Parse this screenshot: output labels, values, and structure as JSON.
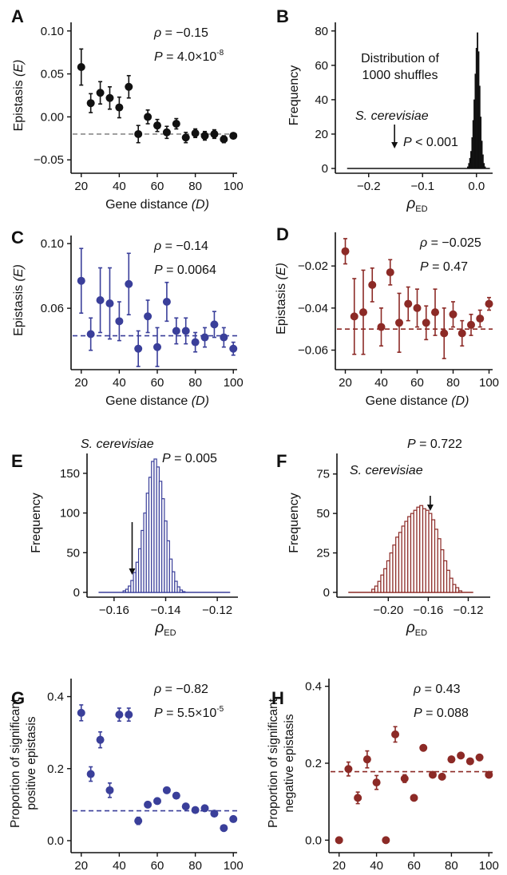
{
  "colors": {
    "black": "#111111",
    "blue": "#3a3f9a",
    "red": "#8c2a26",
    "grey": "#8a8a8a"
  },
  "panels": [
    {
      "letter": "A",
      "type": "scatter",
      "color": "black",
      "xlabel": "Gene distance",
      "xlabel_var": "(D)",
      "ylabel": "Epistasis",
      "ylabel_var": "(E)",
      "xlim": [
        18,
        102
      ],
      "ylim": [
        -0.06,
        0.11
      ],
      "xticks": [
        20,
        40,
        60,
        80,
        100
      ],
      "yticks": [
        -0.05,
        0.0,
        0.05,
        0.1
      ],
      "ytick_labels": [
        "-0.05",
        "0.00",
        "0.05",
        "0.10"
      ],
      "stat_rho": "ρ = −0.15",
      "stat_p": "P = 4.0×10",
      "stat_p_exp": "-8",
      "ref_line": -0.02,
      "points": [
        {
          "x": 20,
          "y": 0.058,
          "err": 0.021
        },
        {
          "x": 25,
          "y": 0.016,
          "err": 0.011
        },
        {
          "x": 30,
          "y": 0.028,
          "err": 0.013
        },
        {
          "x": 35,
          "y": 0.022,
          "err": 0.013
        },
        {
          "x": 40,
          "y": 0.011,
          "err": 0.012
        },
        {
          "x": 45,
          "y": 0.035,
          "err": 0.013
        },
        {
          "x": 50,
          "y": -0.02,
          "err": 0.01
        },
        {
          "x": 55,
          "y": 0.0,
          "err": 0.008
        },
        {
          "x": 60,
          "y": -0.01,
          "err": 0.007
        },
        {
          "x": 65,
          "y": -0.018,
          "err": 0.007
        },
        {
          "x": 70,
          "y": -0.008,
          "err": 0.006
        },
        {
          "x": 75,
          "y": -0.024,
          "err": 0.006
        },
        {
          "x": 80,
          "y": -0.019,
          "err": 0.005
        },
        {
          "x": 85,
          "y": -0.022,
          "err": 0.005
        },
        {
          "x": 90,
          "y": -0.02,
          "err": 0.005
        },
        {
          "x": 95,
          "y": -0.026,
          "err": 0.004
        },
        {
          "x": 100,
          "y": -0.022,
          "err": 0.003
        }
      ]
    },
    {
      "letter": "B",
      "type": "histogram",
      "color": "black",
      "xlabel": "ρ",
      "xlabel_sub": "ED",
      "ylabel": "Frequency",
      "xlim": [
        -0.25,
        0.03
      ],
      "ylim": [
        0,
        85
      ],
      "xticks": [
        -0.2,
        -0.1,
        0.0
      ],
      "xtick_labels": [
        "-0.2",
        "-0.1",
        "0.0"
      ],
      "yticks": [
        0,
        20,
        40,
        60,
        80
      ],
      "annotation_lines": [
        "Distribution of",
        "1000 shuffles"
      ],
      "species": "S. cerevisiae",
      "pvalue": "P < 0.001",
      "arrow_x": -0.152,
      "baseline": [
        -0.24,
        0.025
      ],
      "bin_width": 0.002,
      "bins": [
        {
          "x": -0.016,
          "h": 1
        },
        {
          "x": -0.014,
          "h": 3
        },
        {
          "x": -0.012,
          "h": 6
        },
        {
          "x": -0.01,
          "h": 10
        },
        {
          "x": -0.008,
          "h": 18
        },
        {
          "x": -0.006,
          "h": 28
        },
        {
          "x": -0.004,
          "h": 40
        },
        {
          "x": -0.002,
          "h": 55
        },
        {
          "x": 0.0,
          "h": 70
        },
        {
          "x": 0.002,
          "h": 79
        },
        {
          "x": 0.004,
          "h": 68
        },
        {
          "x": 0.006,
          "h": 48
        },
        {
          "x": 0.008,
          "h": 30
        },
        {
          "x": 0.01,
          "h": 16
        },
        {
          "x": 0.012,
          "h": 8
        },
        {
          "x": 0.014,
          "h": 3
        },
        {
          "x": 0.016,
          "h": 1
        }
      ]
    },
    {
      "letter": "C",
      "type": "scatter",
      "color": "blue",
      "xlabel": "Gene distance",
      "xlabel_var": "(D)",
      "ylabel": "Epistasis",
      "ylabel_var": "(E)",
      "xlim": [
        18,
        102
      ],
      "ylim": [
        0.025,
        0.105
      ],
      "xticks": [
        20,
        40,
        60,
        80,
        100
      ],
      "yticks": [
        0.06,
        0.1
      ],
      "ytick_labels": [
        "0.06",
        "0.10"
      ],
      "stat_rho": "ρ = −0.14",
      "stat_p": "P = 0.0064",
      "stat_p_exp": "",
      "ref_line": 0.043,
      "points": [
        {
          "x": 20,
          "y": 0.077,
          "err": 0.02
        },
        {
          "x": 25,
          "y": 0.044,
          "err": 0.01
        },
        {
          "x": 30,
          "y": 0.065,
          "err": 0.02
        },
        {
          "x": 35,
          "y": 0.063,
          "err": 0.022
        },
        {
          "x": 40,
          "y": 0.052,
          "err": 0.012
        },
        {
          "x": 45,
          "y": 0.075,
          "err": 0.019
        },
        {
          "x": 50,
          "y": 0.035,
          "err": 0.011
        },
        {
          "x": 55,
          "y": 0.055,
          "err": 0.01
        },
        {
          "x": 60,
          "y": 0.036,
          "err": 0.012
        },
        {
          "x": 65,
          "y": 0.064,
          "err": 0.012
        },
        {
          "x": 70,
          "y": 0.046,
          "err": 0.008
        },
        {
          "x": 75,
          "y": 0.046,
          "err": 0.008
        },
        {
          "x": 80,
          "y": 0.039,
          "err": 0.006
        },
        {
          "x": 85,
          "y": 0.042,
          "err": 0.006
        },
        {
          "x": 90,
          "y": 0.05,
          "err": 0.008
        },
        {
          "x": 95,
          "y": 0.042,
          "err": 0.006
        },
        {
          "x": 100,
          "y": 0.035,
          "err": 0.004
        }
      ]
    },
    {
      "letter": "D",
      "type": "scatter",
      "color": "red",
      "xlabel": "Gene distance",
      "xlabel_var": "(D)",
      "ylabel": "Epistasis",
      "ylabel_var": "(E)",
      "xlim": [
        18,
        102
      ],
      "ylim": [
        -0.067,
        -0.004
      ],
      "xticks": [
        20,
        40,
        60,
        80,
        100
      ],
      "yticks": [
        -0.06,
        -0.04,
        -0.02
      ],
      "ytick_labels": [
        "-0.06",
        "-0.04",
        "-0.02"
      ],
      "stat_rho": "ρ = −0.025",
      "stat_p": "P = 0.47",
      "stat_p_exp": "",
      "ref_line": -0.05,
      "points": [
        {
          "x": 20,
          "y": -0.013,
          "err": 0.006
        },
        {
          "x": 25,
          "y": -0.044,
          "err": 0.018
        },
        {
          "x": 30,
          "y": -0.042,
          "err": 0.02
        },
        {
          "x": 35,
          "y": -0.029,
          "err": 0.008
        },
        {
          "x": 40,
          "y": -0.049,
          "err": 0.009
        },
        {
          "x": 45,
          "y": -0.023,
          "err": 0.006
        },
        {
          "x": 50,
          "y": -0.047,
          "err": 0.014
        },
        {
          "x": 55,
          "y": -0.038,
          "err": 0.008
        },
        {
          "x": 60,
          "y": -0.04,
          "err": 0.009
        },
        {
          "x": 65,
          "y": -0.047,
          "err": 0.008
        },
        {
          "x": 70,
          "y": -0.042,
          "err": 0.011
        },
        {
          "x": 75,
          "y": -0.052,
          "err": 0.012
        },
        {
          "x": 80,
          "y": -0.043,
          "err": 0.006
        },
        {
          "x": 85,
          "y": -0.052,
          "err": 0.006
        },
        {
          "x": 90,
          "y": -0.048,
          "err": 0.005
        },
        {
          "x": 95,
          "y": -0.045,
          "err": 0.004
        },
        {
          "x": 100,
          "y": -0.038,
          "err": 0.003
        }
      ]
    },
    {
      "letter": "E",
      "type": "histogram",
      "color": "blue",
      "xlabel": "ρ",
      "xlabel_sub": "ED",
      "ylabel": "Frequency",
      "xlim": [
        -0.168,
        -0.112
      ],
      "ylim": [
        0,
        175
      ],
      "xticks": [
        -0.16,
        -0.14,
        -0.12
      ],
      "xtick_labels": [
        "-0.16",
        "-0.14",
        "-0.12"
      ],
      "yticks": [
        0,
        50,
        100,
        150
      ],
      "annotation_lines": [],
      "species": "S. cerevisiae",
      "pvalue": "P = 0.005",
      "arrow_x": -0.153,
      "baseline": [
        -0.166,
        -0.115
      ],
      "bin_width": 0.001,
      "bins": [
        {
          "x": -0.156,
          "h": 2
        },
        {
          "x": -0.155,
          "h": 4
        },
        {
          "x": -0.154,
          "h": 8
        },
        {
          "x": -0.153,
          "h": 15
        },
        {
          "x": -0.152,
          "h": 25
        },
        {
          "x": -0.151,
          "h": 38
        },
        {
          "x": -0.15,
          "h": 55
        },
        {
          "x": -0.149,
          "h": 78
        },
        {
          "x": -0.148,
          "h": 100
        },
        {
          "x": -0.147,
          "h": 125
        },
        {
          "x": -0.146,
          "h": 145
        },
        {
          "x": -0.145,
          "h": 165
        },
        {
          "x": -0.144,
          "h": 168
        },
        {
          "x": -0.143,
          "h": 158
        },
        {
          "x": -0.142,
          "h": 140
        },
        {
          "x": -0.141,
          "h": 118
        },
        {
          "x": -0.14,
          "h": 90
        },
        {
          "x": -0.139,
          "h": 65
        },
        {
          "x": -0.138,
          "h": 42
        },
        {
          "x": -0.137,
          "h": 26
        },
        {
          "x": -0.136,
          "h": 14
        },
        {
          "x": -0.135,
          "h": 7
        },
        {
          "x": -0.134,
          "h": 3
        },
        {
          "x": -0.133,
          "h": 1
        }
      ]
    },
    {
      "letter": "F",
      "type": "histogram",
      "color": "red",
      "xlabel": "ρ",
      "xlabel_sub": "ED",
      "ylabel": "Frequency",
      "xlim": [
        -0.245,
        -0.098
      ],
      "ylim": [
        0,
        88
      ],
      "xticks": [
        -0.2,
        -0.16,
        -0.12
      ],
      "xtick_labels": [
        "-0.20",
        "-0.16",
        "-0.12"
      ],
      "yticks": [
        0,
        25,
        50,
        75
      ],
      "annotation_lines": [],
      "species": "S. cerevisiae",
      "pvalue": "P = 0.722",
      "arrow_x": -0.158,
      "baseline": [
        -0.24,
        -0.115
      ],
      "bin_width": 0.003,
      "bins": [
        {
          "x": -0.215,
          "h": 2
        },
        {
          "x": -0.212,
          "h": 4
        },
        {
          "x": -0.209,
          "h": 7
        },
        {
          "x": -0.206,
          "h": 11
        },
        {
          "x": -0.203,
          "h": 15
        },
        {
          "x": -0.2,
          "h": 20
        },
        {
          "x": -0.197,
          "h": 25
        },
        {
          "x": -0.194,
          "h": 30
        },
        {
          "x": -0.191,
          "h": 35
        },
        {
          "x": -0.188,
          "h": 38
        },
        {
          "x": -0.185,
          "h": 42
        },
        {
          "x": -0.182,
          "h": 45
        },
        {
          "x": -0.179,
          "h": 48
        },
        {
          "x": -0.176,
          "h": 50
        },
        {
          "x": -0.173,
          "h": 52
        },
        {
          "x": -0.17,
          "h": 54
        },
        {
          "x": -0.167,
          "h": 55
        },
        {
          "x": -0.164,
          "h": 53
        },
        {
          "x": -0.161,
          "h": 52
        },
        {
          "x": -0.158,
          "h": 50
        },
        {
          "x": -0.155,
          "h": 46
        },
        {
          "x": -0.152,
          "h": 40
        },
        {
          "x": -0.149,
          "h": 34
        },
        {
          "x": -0.146,
          "h": 27
        },
        {
          "x": -0.143,
          "h": 20
        },
        {
          "x": -0.14,
          "h": 14
        },
        {
          "x": -0.137,
          "h": 9
        },
        {
          "x": -0.134,
          "h": 5
        },
        {
          "x": -0.131,
          "h": 3
        },
        {
          "x": -0.128,
          "h": 1
        }
      ]
    },
    {
      "letter": "G",
      "type": "scatter",
      "color": "blue",
      "xlabel": "Gene distance",
      "xlabel_var": "(D)",
      "ylabel_lines": [
        "Proportion of significant",
        "positive epistasis"
      ],
      "xlim": [
        18,
        102
      ],
      "ylim": [
        -0.02,
        0.45
      ],
      "xticks": [
        20,
        40,
        60,
        80,
        100
      ],
      "yticks": [
        0.0,
        0.2,
        0.4
      ],
      "ytick_labels": [
        "0.0",
        "0.2",
        "0.4"
      ],
      "stat_rho": "ρ = −0.82",
      "stat_p": "P = 5.5×10",
      "stat_p_exp": "-5",
      "ref_line": 0.083,
      "points": [
        {
          "x": 20,
          "y": 0.355,
          "err": 0.022
        },
        {
          "x": 25,
          "y": 0.185,
          "err": 0.02
        },
        {
          "x": 30,
          "y": 0.28,
          "err": 0.022
        },
        {
          "x": 35,
          "y": 0.14,
          "err": 0.02
        },
        {
          "x": 40,
          "y": 0.35,
          "err": 0.018
        },
        {
          "x": 45,
          "y": 0.35,
          "err": 0.018
        },
        {
          "x": 50,
          "y": 0.055,
          "err": 0.01
        },
        {
          "x": 55,
          "y": 0.1,
          "err": 0.008
        },
        {
          "x": 60,
          "y": 0.11,
          "err": 0.008
        },
        {
          "x": 65,
          "y": 0.14,
          "err": 0.008
        },
        {
          "x": 70,
          "y": 0.125,
          "err": 0.008
        },
        {
          "x": 75,
          "y": 0.095,
          "err": 0.006
        },
        {
          "x": 80,
          "y": 0.085,
          "err": 0.006
        },
        {
          "x": 85,
          "y": 0.09,
          "err": 0.006
        },
        {
          "x": 90,
          "y": 0.075,
          "err": 0.005
        },
        {
          "x": 95,
          "y": 0.035,
          "err": 0.004
        },
        {
          "x": 100,
          "y": 0.06,
          "err": 0.004
        }
      ]
    },
    {
      "letter": "H",
      "type": "scatter",
      "color": "red",
      "xlabel": "Gene distance",
      "xlabel_var": "(D)",
      "ylabel_lines": [
        "Proportion of significant",
        "negative epistasis"
      ],
      "xlim": [
        18,
        102
      ],
      "ylim": [
        -0.02,
        0.42
      ],
      "xticks": [
        20,
        40,
        60,
        80,
        100
      ],
      "yticks": [
        0.0,
        0.2,
        0.4
      ],
      "ytick_labels": [
        "0.0",
        "0.2",
        "0.4"
      ],
      "stat_rho": "ρ = 0.43",
      "stat_p": "P = 0.088",
      "stat_p_exp": "",
      "ref_line": 0.178,
      "points": [
        {
          "x": 20,
          "y": 0.0,
          "err": 0.0
        },
        {
          "x": 25,
          "y": 0.185,
          "err": 0.018
        },
        {
          "x": 30,
          "y": 0.11,
          "err": 0.015
        },
        {
          "x": 35,
          "y": 0.21,
          "err": 0.022
        },
        {
          "x": 40,
          "y": 0.15,
          "err": 0.018
        },
        {
          "x": 45,
          "y": 0.0,
          "err": 0.0
        },
        {
          "x": 50,
          "y": 0.275,
          "err": 0.02
        },
        {
          "x": 55,
          "y": 0.16,
          "err": 0.01
        },
        {
          "x": 60,
          "y": 0.11,
          "err": 0.004
        },
        {
          "x": 65,
          "y": 0.24,
          "err": 0.004
        },
        {
          "x": 70,
          "y": 0.17,
          "err": 0.004
        },
        {
          "x": 75,
          "y": 0.165,
          "err": 0.004
        },
        {
          "x": 80,
          "y": 0.21,
          "err": 0.004
        },
        {
          "x": 85,
          "y": 0.22,
          "err": 0.004
        },
        {
          "x": 90,
          "y": 0.205,
          "err": 0.004
        },
        {
          "x": 95,
          "y": 0.215,
          "err": 0.004
        },
        {
          "x": 100,
          "y": 0.17,
          "err": 0.004
        }
      ]
    }
  ]
}
